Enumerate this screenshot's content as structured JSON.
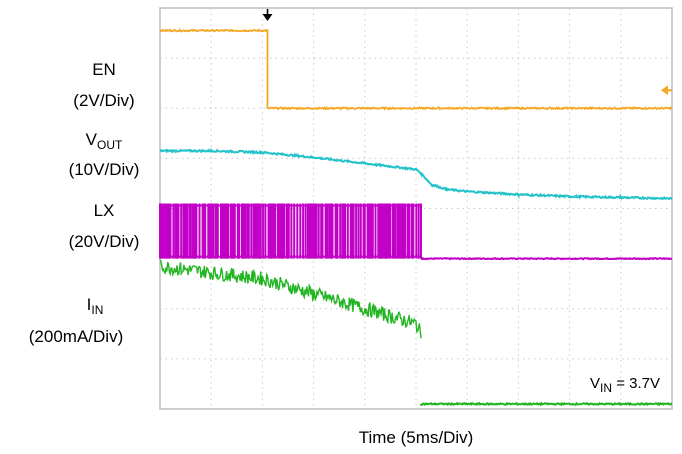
{
  "chart_data": {
    "type": "line",
    "title": "",
    "xlabel": "Time (5ms/Div)",
    "annotation": {
      "label": "V",
      "sub": "IN",
      "rest": " = 3.7V"
    },
    "grid": true,
    "x_divisions": 10,
    "y_divisions": 8,
    "xlim": [
      0,
      10
    ],
    "ylim": [
      0,
      8
    ],
    "event_time_div": 2.1,
    "series": [
      {
        "name": "EN",
        "scale": "(2V/Div)",
        "color": "#f5a623",
        "x": [
          0,
          2.1,
          2.1,
          10
        ],
        "y": [
          7.55,
          7.55,
          6.0,
          6.0
        ]
      },
      {
        "name": "V",
        "name_sub": "OUT",
        "scale": "(10V/Div)",
        "color": "#22c2c8",
        "x": [
          0,
          1.0,
          2.0,
          3.0,
          4.0,
          5.0,
          5.1,
          5.3,
          5.6,
          6.0,
          7.0,
          8.0,
          9.0,
          10
        ],
        "y": [
          5.15,
          5.15,
          5.12,
          5.02,
          4.9,
          4.78,
          4.7,
          4.48,
          4.38,
          4.34,
          4.28,
          4.24,
          4.22,
          4.2
        ]
      },
      {
        "name": "LX",
        "scale": "(20V/Div)",
        "color": "#c200c8",
        "x": [
          0,
          5.1,
          5.1,
          10
        ],
        "y": [
          3.86,
          3.86,
          3.0,
          3.0
        ],
        "switching": {
          "start": 0,
          "end": 5.1,
          "low": 3.0,
          "high": 4.1
        }
      },
      {
        "name": "I",
        "name_sub": "IN",
        "scale": "(200mA/Div)",
        "color": "#22b522",
        "x": [
          0,
          1.0,
          2.0,
          3.0,
          4.0,
          5.0,
          5.1,
          5.1,
          10
        ],
        "y": [
          2.85,
          2.72,
          2.6,
          2.3,
          2.0,
          1.7,
          1.5,
          0.1,
          0.1
        ]
      }
    ]
  }
}
